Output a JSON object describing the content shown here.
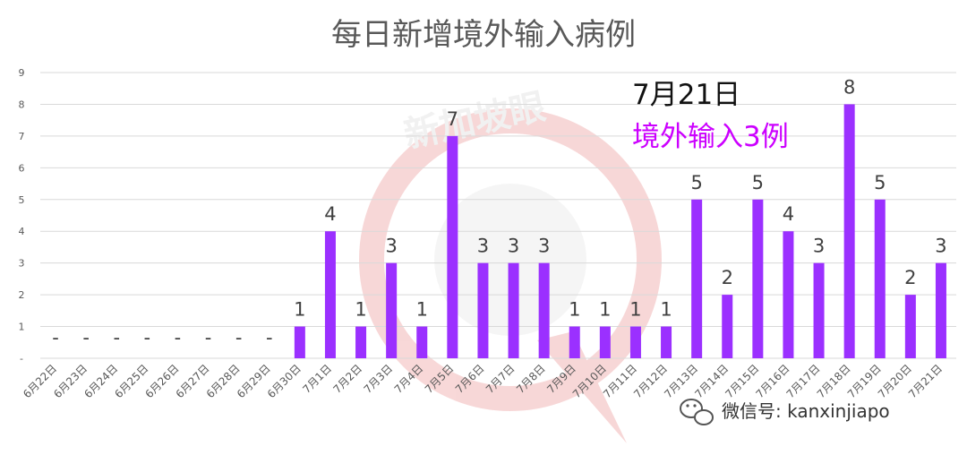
{
  "chart_data": {
    "type": "bar",
    "title": "每日新增境外输入病例",
    "xlabel": "",
    "ylabel": "",
    "ylim": [
      0,
      9
    ],
    "yticks": [
      "-",
      "1",
      "2",
      "3",
      "4",
      "5",
      "6",
      "7",
      "8",
      "9"
    ],
    "grid": true,
    "categories": [
      "6月22日",
      "6月23日",
      "6月24日",
      "6月25日",
      "6月26日",
      "6月27日",
      "6月28日",
      "6月29日",
      "6月30日",
      "7月1日",
      "7月2日",
      "7月3日",
      "7月4日",
      "7月5日",
      "7月6日",
      "7月7日",
      "7月8日",
      "7月9日",
      "7月10日",
      "7月11日",
      "7月12日",
      "7月13日",
      "7月14日",
      "7月15日",
      "7月16日",
      "7月17日",
      "7月18日",
      "7月19日",
      "7月20日",
      "7月21日"
    ],
    "values": [
      0,
      0,
      0,
      0,
      0,
      0,
      0,
      0,
      1,
      4,
      1,
      3,
      1,
      7,
      3,
      3,
      3,
      1,
      1,
      1,
      1,
      5,
      2,
      5,
      4,
      3,
      8,
      5,
      2,
      3
    ],
    "data_labels": [
      "-",
      "-",
      "-",
      "-",
      "-",
      "-",
      "-",
      "-",
      "1",
      "4",
      "1",
      "3",
      "1",
      "7",
      "3",
      "3",
      "3",
      "1",
      "1",
      "1",
      "1",
      "5",
      "2",
      "5",
      "4",
      "3",
      "8",
      "5",
      "2",
      "3"
    ],
    "bar_color": "#9b30ff",
    "annotation": {
      "date": "7月21日",
      "text": "境外输入3例",
      "text_color": "#cc00ff"
    }
  },
  "watermark": {
    "text": "新加坡眼",
    "color": "#e8a0a0"
  },
  "wechat": {
    "icon": "wechat-icon",
    "text": "微信号: kanxinjiapo"
  }
}
